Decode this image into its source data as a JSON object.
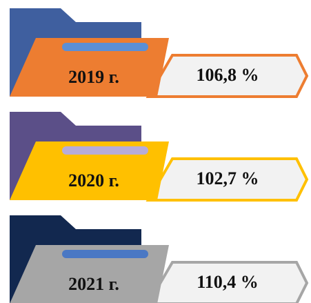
{
  "items": [
    {
      "year": "2019 г.",
      "value": "106,8 %"
    },
    {
      "year": "2020 г.",
      "value": "102,7 %"
    },
    {
      "year": "2021 г.",
      "value": "110,4 %"
    }
  ]
}
